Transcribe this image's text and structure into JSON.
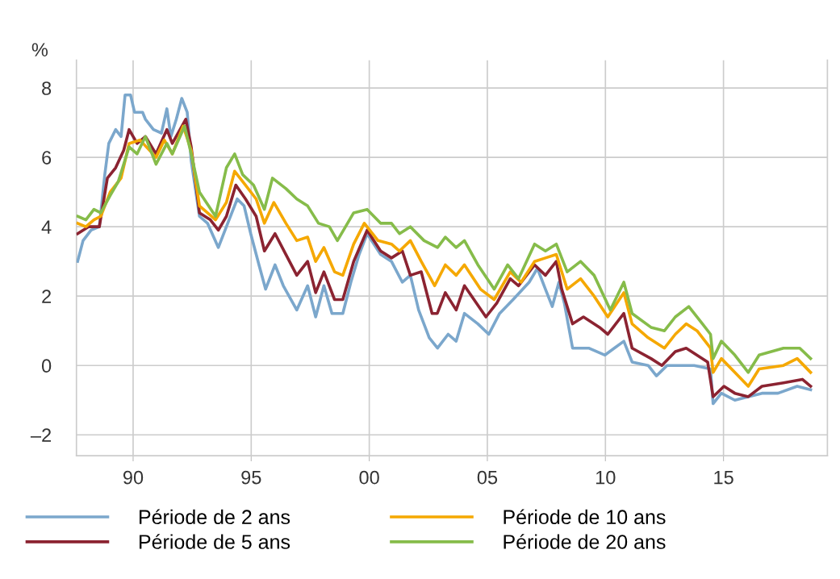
{
  "chart_data": {
    "type": "line",
    "ylabel": "%",
    "xlim": [
      1987.6,
      2019.4
    ],
    "ylim": [
      -2.6,
      8.8
    ],
    "xticks": [
      {
        "value": 1990,
        "label": "90"
      },
      {
        "value": 1995,
        "label": "95"
      },
      {
        "value": 2000,
        "label": "00"
      },
      {
        "value": 2005,
        "label": "05"
      },
      {
        "value": 2010,
        "label": "10"
      },
      {
        "value": 2015,
        "label": "15"
      }
    ],
    "yticks": [
      {
        "value": -2,
        "label": "–2"
      },
      0,
      2,
      4,
      6,
      8
    ],
    "grid": true,
    "legend": "bottom",
    "marker": "none",
    "line_style": "solid",
    "series": [
      {
        "name": "Période de 2 ans",
        "color": "#7ba7cc",
        "x": [
          1987.65,
          1987.88,
          1988.22,
          1988.57,
          1988.8,
          1988.97,
          1989.26,
          1989.49,
          1989.66,
          1989.89,
          1990.06,
          1990.4,
          1990.52,
          1990.86,
          1991.2,
          1991.43,
          1991.6,
          1991.83,
          1992.06,
          1992.29,
          1992.46,
          1992.81,
          1993.15,
          1993.61,
          1993.95,
          1994.41,
          1994.7,
          1994.98,
          1995.33,
          1995.61,
          1996.01,
          1996.36,
          1996.93,
          1997.39,
          1997.73,
          1998.08,
          1998.42,
          1998.88,
          1999.22,
          1999.57,
          1999.91,
          2000.48,
          2000.94,
          2001.4,
          2001.74,
          2002.09,
          2002.54,
          2002.89,
          2003.34,
          2003.68,
          2004.03,
          2004.6,
          2005.06,
          2005.52,
          2006.09,
          2006.77,
          2007.12,
          2007.46,
          2007.75,
          2008.03,
          2008.26,
          2008.61,
          2009.29,
          2009.98,
          2010.78,
          2011.13,
          2011.81,
          2012.16,
          2012.61,
          2013.19,
          2013.76,
          2014.45,
          2014.56,
          2014.91,
          2015.48,
          2016.05,
          2016.63,
          2017.31,
          2018.12,
          2018.69
        ],
        "values": [
          3.0,
          3.6,
          3.9,
          4.0,
          5.5,
          6.4,
          6.8,
          6.6,
          7.8,
          7.8,
          7.3,
          7.3,
          7.1,
          6.8,
          6.7,
          7.4,
          6.6,
          7.1,
          7.7,
          7.3,
          5.9,
          4.3,
          4.1,
          3.4,
          4.0,
          4.8,
          4.6,
          3.8,
          2.9,
          2.2,
          2.9,
          2.3,
          1.6,
          2.3,
          1.4,
          2.3,
          1.5,
          1.5,
          2.4,
          3.2,
          3.8,
          3.2,
          3.0,
          2.4,
          2.6,
          1.6,
          0.8,
          0.5,
          0.9,
          0.7,
          1.5,
          1.2,
          0.9,
          1.5,
          1.9,
          2.4,
          2.8,
          2.2,
          1.7,
          2.4,
          1.8,
          0.5,
          0.5,
          0.3,
          0.7,
          0.1,
          0.0,
          -0.3,
          0.0,
          0.0,
          0.0,
          -0.1,
          -1.1,
          -0.8,
          -1.0,
          -0.9,
          -0.8,
          -0.8,
          -0.6,
          -0.7
        ]
      },
      {
        "name": "Période de 5 ans",
        "color": "#8b2331",
        "x": [
          1987.65,
          1988.11,
          1988.57,
          1988.91,
          1989.26,
          1989.6,
          1989.83,
          1990.17,
          1990.52,
          1990.97,
          1991.43,
          1991.66,
          1992.23,
          1992.46,
          1992.81,
          1993.27,
          1993.61,
          1993.95,
          1994.35,
          1994.76,
          1995.21,
          1995.56,
          1996.01,
          1996.47,
          1996.93,
          1997.39,
          1997.73,
          1998.08,
          1998.53,
          1998.88,
          1999.34,
          1999.91,
          2000.48,
          2000.94,
          2001.4,
          2001.74,
          2002.2,
          2002.66,
          2002.88,
          2003.22,
          2003.68,
          2004.03,
          2004.94,
          2005.4,
          2005.97,
          2006.32,
          2007.0,
          2007.46,
          2007.92,
          2008.15,
          2008.61,
          2009.07,
          2009.75,
          2010.1,
          2010.78,
          2011.13,
          2011.93,
          2012.39,
          2012.96,
          2013.42,
          2014.33,
          2014.56,
          2015.02,
          2015.48,
          2016.05,
          2016.63,
          2017.54,
          2018.34,
          2018.69
        ],
        "values": [
          3.8,
          4.0,
          4.0,
          5.4,
          5.7,
          6.2,
          6.8,
          6.4,
          6.6,
          6.1,
          6.8,
          6.4,
          7.1,
          6.3,
          4.4,
          4.2,
          3.9,
          4.3,
          5.2,
          4.8,
          4.3,
          3.3,
          3.8,
          3.2,
          2.6,
          3.0,
          2.1,
          2.7,
          1.9,
          1.9,
          3.0,
          3.9,
          3.3,
          3.1,
          3.3,
          2.6,
          2.7,
          1.5,
          1.5,
          2.1,
          1.6,
          2.3,
          1.4,
          1.8,
          2.5,
          2.3,
          2.9,
          2.6,
          3.0,
          2.2,
          1.2,
          1.4,
          1.1,
          0.9,
          1.5,
          0.5,
          0.2,
          0.0,
          0.4,
          0.5,
          0.1,
          -0.9,
          -0.6,
          -0.8,
          -0.9,
          -0.6,
          -0.5,
          -0.4,
          -0.6
        ]
      },
      {
        "name": "Période de 10 ans",
        "color": "#f5a800",
        "x": [
          1987.65,
          1988.0,
          1988.34,
          1988.63,
          1989.03,
          1989.49,
          1989.83,
          1990.29,
          1990.97,
          1991.32,
          1991.66,
          1992.12,
          1992.46,
          1992.81,
          1993.49,
          1993.95,
          1994.3,
          1994.76,
          1995.21,
          1995.56,
          1995.96,
          1996.47,
          1996.93,
          1997.39,
          1997.73,
          1998.08,
          1998.53,
          1998.88,
          1999.34,
          1999.79,
          2000.37,
          2000.94,
          2001.28,
          2001.74,
          2002.2,
          2002.77,
          2003.22,
          2003.68,
          2004.03,
          2004.71,
          2005.29,
          2005.97,
          2006.43,
          2007.0,
          2007.46,
          2007.92,
          2008.38,
          2008.95,
          2009.52,
          2010.1,
          2010.78,
          2011.13,
          2011.81,
          2012.5,
          2012.96,
          2013.42,
          2013.88,
          2014.45,
          2014.56,
          2014.91,
          2015.48,
          2016.05,
          2016.51,
          2017.54,
          2018.12,
          2018.69
        ],
        "values": [
          4.1,
          4.0,
          4.2,
          4.3,
          5.0,
          5.4,
          6.4,
          6.5,
          6.0,
          6.5,
          6.1,
          6.9,
          6.2,
          4.6,
          4.2,
          4.7,
          5.6,
          5.2,
          4.8,
          4.1,
          4.7,
          4.1,
          3.6,
          3.7,
          3.0,
          3.4,
          2.7,
          2.6,
          3.5,
          4.1,
          3.6,
          3.5,
          3.3,
          3.6,
          3.0,
          2.3,
          2.9,
          2.6,
          2.9,
          2.2,
          1.9,
          2.7,
          2.4,
          3.0,
          3.1,
          3.2,
          2.2,
          2.5,
          2.0,
          1.4,
          2.1,
          1.2,
          0.8,
          0.5,
          0.9,
          1.2,
          1.0,
          0.5,
          -0.2,
          0.2,
          -0.2,
          -0.6,
          -0.1,
          0.0,
          0.2,
          -0.2
        ]
      },
      {
        "name": "Période de 20 ans",
        "color": "#86bc4a",
        "x": [
          1987.65,
          1988.0,
          1988.34,
          1988.63,
          1989.03,
          1989.37,
          1989.83,
          1990.17,
          1990.52,
          1990.97,
          1991.43,
          1991.66,
          1992.18,
          1992.46,
          1992.81,
          1993.49,
          1993.95,
          1994.3,
          1994.64,
          1995.1,
          1995.56,
          1995.9,
          1996.47,
          1996.93,
          1997.39,
          1997.85,
          1998.31,
          1998.65,
          1999.34,
          1999.91,
          2000.48,
          2000.94,
          2001.28,
          2001.74,
          2002.32,
          2002.89,
          2003.22,
          2003.68,
          2004.03,
          2004.6,
          2005.29,
          2005.86,
          2006.32,
          2007.0,
          2007.46,
          2007.92,
          2008.38,
          2008.95,
          2009.52,
          2010.21,
          2010.78,
          2011.13,
          2011.93,
          2012.5,
          2012.96,
          2013.53,
          2014.11,
          2014.45,
          2014.56,
          2014.91,
          2015.48,
          2016.05,
          2016.51,
          2017.54,
          2018.23,
          2018.69
        ],
        "values": [
          4.3,
          4.2,
          4.5,
          4.4,
          4.9,
          5.3,
          6.3,
          6.1,
          6.6,
          5.8,
          6.4,
          6.1,
          6.9,
          6.1,
          5.0,
          4.3,
          5.7,
          6.1,
          5.5,
          5.2,
          4.5,
          5.4,
          5.1,
          4.8,
          4.6,
          4.1,
          4.0,
          3.6,
          4.4,
          4.5,
          4.1,
          4.1,
          3.8,
          4.0,
          3.6,
          3.4,
          3.7,
          3.4,
          3.6,
          2.9,
          2.2,
          2.9,
          2.5,
          3.5,
          3.3,
          3.5,
          2.7,
          3.0,
          2.6,
          1.6,
          2.4,
          1.5,
          1.1,
          1.0,
          1.4,
          1.7,
          1.2,
          0.9,
          0.2,
          0.7,
          0.3,
          -0.2,
          0.3,
          0.5,
          0.5,
          0.2
        ]
      }
    ]
  }
}
